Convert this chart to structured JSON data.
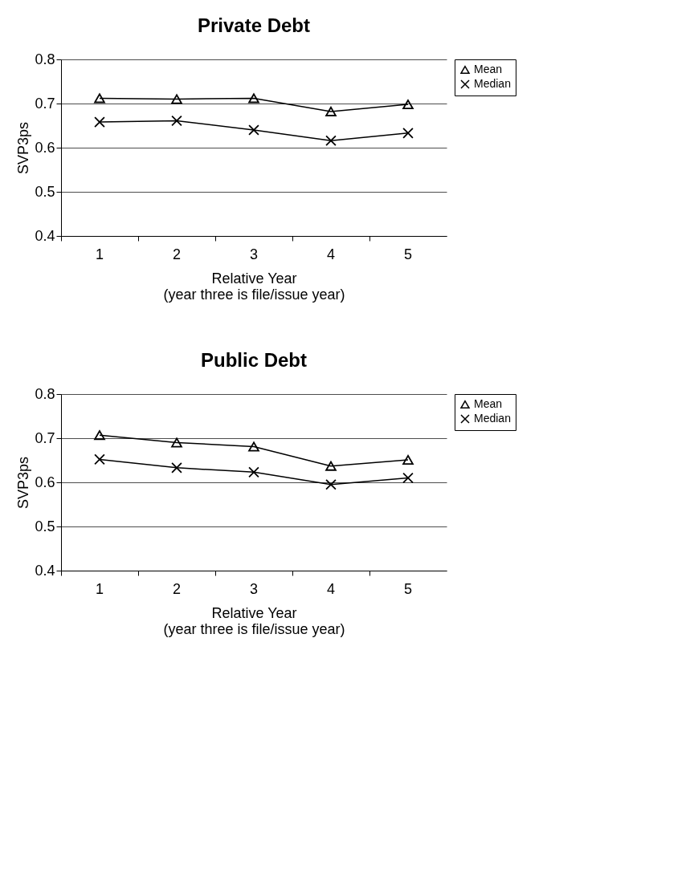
{
  "chart_data": [
    {
      "type": "line",
      "title": "Private Debt",
      "xlabel": "Relative Year\n(year three is file/issue year)",
      "ylabel": "SVP3ps",
      "categories": [
        "1",
        "2",
        "3",
        "4",
        "5"
      ],
      "ylim": [
        0.4,
        0.8
      ],
      "yticks": [
        0.4,
        0.5,
        0.6,
        0.7,
        0.8
      ],
      "grid": "y",
      "legend": "top right",
      "line_style": "solid",
      "series": [
        {
          "name": "Mean",
          "color": "#000000",
          "marker": "triangle",
          "values": [
            0.712,
            0.71,
            0.712,
            0.682,
            0.698
          ]
        },
        {
          "name": "Median",
          "color": "#000000",
          "marker": "cross",
          "values": [
            0.658,
            0.661,
            0.64,
            0.616,
            0.633
          ]
        }
      ]
    },
    {
      "type": "line",
      "title": "Public Debt",
      "xlabel": "Relative Year\n(year three is file/issue year)",
      "ylabel": "SVP3ps",
      "categories": [
        "1",
        "2",
        "3",
        "4",
        "5"
      ],
      "ylim": [
        0.4,
        0.8
      ],
      "yticks": [
        0.4,
        0.5,
        0.6,
        0.7,
        0.8
      ],
      "grid": "y",
      "legend": "top right",
      "line_style": "solid",
      "series": [
        {
          "name": "Mean",
          "color": "#000000",
          "marker": "triangle",
          "values": [
            0.707,
            0.69,
            0.681,
            0.637,
            0.651
          ]
        },
        {
          "name": "Median",
          "color": "#000000",
          "marker": "cross",
          "values": [
            0.652,
            0.633,
            0.623,
            0.595,
            0.61
          ]
        }
      ]
    }
  ]
}
